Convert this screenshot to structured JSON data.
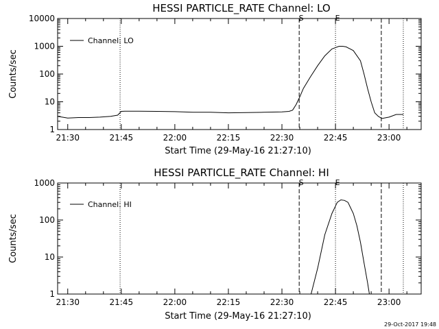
{
  "footer_text": "29-Oct-2017 19:48",
  "chart_data": [
    {
      "type": "line",
      "title": "HESSI PARTICLE_RATE Channel: LO",
      "xlabel": "Start Time (29-May-16 21:27:10)",
      "ylabel": "Counts/sec",
      "y_scale": "log",
      "ylim": [
        1,
        10000
      ],
      "y_ticks": [
        {
          "value": 1,
          "label": "1"
        },
        {
          "value": 10,
          "label": "10"
        },
        {
          "value": 100,
          "label": "100"
        },
        {
          "value": 1000,
          "label": "1000"
        },
        {
          "value": 10000,
          "label": "10000"
        }
      ],
      "xlim": [
        "21:27:10",
        "23:09:00"
      ],
      "x_ticks": [
        "21:30",
        "21:45",
        "22:00",
        "22:15",
        "22:30",
        "22:45",
        "23:00"
      ],
      "legend": {
        "position": "top-left",
        "entries": [
          "Channel: LO"
        ]
      },
      "markers": [
        {
          "time": "21:44:40",
          "style": "dotted",
          "label": ""
        },
        {
          "time": "22:34:50",
          "style": "dashed",
          "label": "S"
        },
        {
          "time": "22:45:00",
          "style": "dotted",
          "label": "E"
        },
        {
          "time": "22:57:50",
          "style": "dashed",
          "label": ""
        },
        {
          "time": "23:04:00",
          "style": "dotted",
          "label": ""
        }
      ],
      "series": [
        {
          "name": "Channel: LO",
          "x": [
            "21:27:10",
            "21:30:00",
            "21:33:00",
            "21:36:00",
            "21:39:00",
            "21:42:00",
            "21:44:00",
            "21:45:00",
            "21:46:00",
            "21:50:00",
            "21:55:00",
            "22:00:00",
            "22:05:00",
            "22:10:00",
            "22:15:00",
            "22:20:00",
            "22:25:00",
            "22:30:00",
            "22:32:00",
            "22:33:00",
            "22:34:00",
            "22:35:00",
            "22:36:00",
            "22:38:00",
            "22:40:00",
            "22:42:00",
            "22:44:00",
            "22:46:00",
            "22:47:00",
            "22:48:00",
            "22:50:00",
            "22:52:00",
            "22:53:00",
            "22:54:00",
            "22:55:00",
            "22:56:00",
            "22:57:00",
            "22:58:00",
            "23:00:00",
            "23:02:00",
            "23:04:00"
          ],
          "y": [
            3.0,
            2.6,
            2.7,
            2.7,
            2.8,
            3.0,
            3.3,
            4.5,
            4.6,
            4.6,
            4.5,
            4.4,
            4.2,
            4.2,
            4.0,
            4.1,
            4.2,
            4.3,
            4.5,
            5.0,
            8.0,
            15,
            30,
            80,
            200,
            450,
            800,
            1000,
            1000,
            950,
            700,
            300,
            100,
            30,
            10,
            4.0,
            3.0,
            2.5,
            2.8,
            3.5,
            3.5
          ]
        }
      ]
    },
    {
      "type": "line",
      "title": "HESSI PARTICLE_RATE Channel: HI",
      "xlabel": "Start Time (29-May-16 21:27:10)",
      "ylabel": "Counts/sec",
      "y_scale": "log",
      "ylim": [
        1,
        1000
      ],
      "y_ticks": [
        {
          "value": 1,
          "label": "1"
        },
        {
          "value": 10,
          "label": "10"
        },
        {
          "value": 100,
          "label": "100"
        },
        {
          "value": 1000,
          "label": "1000"
        }
      ],
      "xlim": [
        "21:27:10",
        "23:09:00"
      ],
      "x_ticks": [
        "21:30",
        "21:45",
        "22:00",
        "22:15",
        "22:30",
        "22:45",
        "23:00"
      ],
      "legend": {
        "position": "top-left",
        "entries": [
          "Channel: HI"
        ]
      },
      "markers": [
        {
          "time": "21:44:40",
          "style": "dotted",
          "label": ""
        },
        {
          "time": "22:34:50",
          "style": "dashed",
          "label": "S"
        },
        {
          "time": "22:45:00",
          "style": "dotted",
          "label": "E"
        },
        {
          "time": "22:57:50",
          "style": "dashed",
          "label": ""
        },
        {
          "time": "23:04:00",
          "style": "dotted",
          "label": ""
        }
      ],
      "series": [
        {
          "name": "Channel: HI",
          "x": [
            "22:38:10",
            "22:40:00",
            "22:42:00",
            "22:44:00",
            "22:45:30",
            "22:46:30",
            "22:47:30",
            "22:48:30",
            "22:50:00",
            "22:51:00",
            "22:52:00",
            "22:53:00",
            "22:54:00",
            "22:54:30"
          ],
          "y": [
            1.0,
            5,
            40,
            150,
            300,
            350,
            340,
            300,
            150,
            70,
            25,
            7,
            2,
            1.0
          ]
        }
      ]
    }
  ]
}
